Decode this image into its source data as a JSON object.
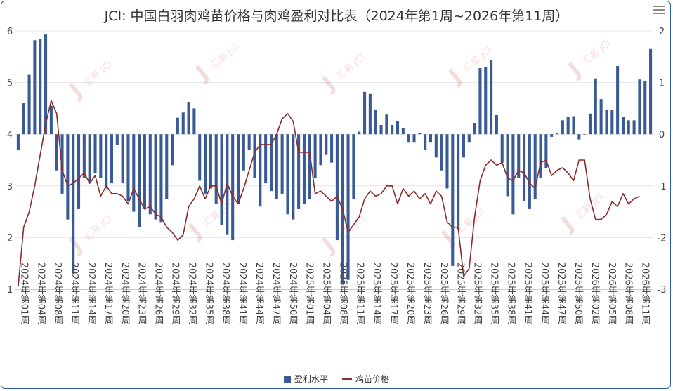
{
  "title": "JCI: 中国白羽肉鸡苗价格与肉鸡盈利对比表（2024年第1周~2026年第11周）",
  "watermark": "汇易 JCI",
  "colors": {
    "bar": "#3a5a96",
    "line": "#8b2b2b",
    "frame": "#2a5ea8",
    "grid": "#e6e6e6"
  },
  "chart_data": {
    "type": "bar+line",
    "title": "JCI: 中国白羽肉鸡苗价格与肉鸡盈利对比表（2024年第1周~2026年第11周）",
    "x_tick_labels": [
      "2024年第01周",
      "2024年第04周",
      "2024年第08周",
      "2024年第11周",
      "2024年第14周",
      "2024年第17周",
      "2024年第20周",
      "2024年第23周",
      "2024年第26周",
      "2024年第29周",
      "2024年第32周",
      "2024年第35周",
      "2024年第38周",
      "2024年第41周",
      "2024年第44周",
      "2024年第47周",
      "2024年第50周",
      "2025年第01周",
      "2025年第04周",
      "2025年第08周",
      "2025年第11周",
      "2025年第14周",
      "2025年第17周",
      "2025年第20周",
      "2025年第23周",
      "2025年第26周",
      "2025年第29周",
      "2025年第32周",
      "2025年第35周",
      "2025年第38周",
      "2025年第41周",
      "2025年第44周",
      "2025年第47周",
      "2025年第50周",
      "2026年第02周",
      "2026年第05周",
      "2026年第08周",
      "2026年第11周"
    ],
    "y_left": {
      "min": 1,
      "max": 6,
      "ticks": [
        1,
        2,
        3,
        4,
        5,
        6
      ]
    },
    "y_right": {
      "min": -3,
      "max": 2,
      "ticks": [
        -3,
        -2,
        -1,
        0,
        1,
        2
      ]
    },
    "series": [
      {
        "name": "盈利水平",
        "type": "bar",
        "axis": "right",
        "values": [
          -0.3,
          0.6,
          1.15,
          1.82,
          1.85,
          1.93,
          0.55,
          -0.7,
          -1.15,
          -1.65,
          -2.7,
          -1.45,
          -0.85,
          -0.95,
          -0.75,
          -0.85,
          -1.05,
          -0.95,
          -0.2,
          -0.95,
          -1.3,
          -1.5,
          -1.8,
          -1.45,
          -1.55,
          -1.65,
          -1.7,
          -1.25,
          -0.6,
          0.32,
          0.42,
          0.62,
          0.5,
          -0.9,
          -1.15,
          -1.05,
          -1.35,
          -1.75,
          -1.95,
          -2.05,
          -1.35,
          -0.7,
          -0.3,
          -0.85,
          -1.4,
          -0.95,
          -1.1,
          -1.25,
          -1.15,
          -1.55,
          -1.65,
          -1.45,
          -1.35,
          -1.25,
          -0.85,
          -0.6,
          -0.4,
          -0.55,
          -2.05,
          -2.9,
          -2.82,
          -1.25,
          0.05,
          0.82,
          0.78,
          0.48,
          0.18,
          0.38,
          0.18,
          0.25,
          0.12,
          -0.15,
          -0.15,
          0.02,
          -0.3,
          -0.15,
          -0.45,
          -0.7,
          -1.05,
          -2.55,
          -1.85,
          -0.45,
          -0.15,
          0.22,
          1.28,
          1.3,
          1.43,
          0.37,
          -0.55,
          -1.2,
          -1.55,
          -0.85,
          -1.3,
          -1.45,
          -1.25,
          -0.85,
          -0.65,
          -0.05,
          0.02,
          0.27,
          0.33,
          0.35,
          -0.1,
          0.0,
          0.4,
          1.08,
          0.68,
          0.48,
          0.47,
          1.32,
          0.34,
          0.27,
          0.27,
          1.06,
          1.03,
          1.65
        ]
      },
      {
        "name": "鸡苗价格",
        "type": "line",
        "axis": "left",
        "values": [
          1.05,
          2.2,
          2.5,
          3.0,
          3.6,
          4.2,
          4.65,
          4.4,
          3.3,
          3.0,
          3.05,
          3.15,
          3.25,
          3.05,
          3.2,
          2.8,
          3.0,
          2.85,
          2.85,
          2.8,
          2.65,
          2.95,
          2.75,
          2.55,
          2.6,
          2.45,
          2.4,
          2.2,
          2.1,
          1.95,
          2.05,
          2.6,
          2.75,
          3.0,
          2.75,
          3.0,
          3.0,
          2.65,
          3.05,
          2.8,
          2.65,
          2.95,
          3.3,
          3.65,
          3.8,
          3.8,
          3.8,
          4.0,
          4.3,
          4.4,
          4.25,
          3.65,
          3.65,
          3.65,
          2.85,
          2.9,
          2.8,
          2.7,
          2.8,
          2.55,
          2.1,
          2.25,
          2.4,
          2.75,
          2.9,
          2.8,
          2.85,
          3.0,
          3.0,
          2.65,
          2.95,
          2.8,
          2.9,
          2.75,
          2.85,
          2.65,
          2.9,
          2.8,
          2.3,
          2.2,
          2.2,
          1.25,
          1.4,
          2.4,
          3.1,
          3.4,
          3.5,
          3.4,
          3.45,
          3.15,
          3.1,
          3.3,
          3.25,
          3.05,
          2.95,
          3.45,
          3.5,
          3.2,
          3.3,
          3.35,
          3.25,
          3.1,
          3.5,
          3.5,
          2.75,
          2.35,
          2.35,
          2.45,
          2.7,
          2.6,
          2.85,
          2.65,
          2.75,
          2.8
        ]
      }
    ]
  },
  "legend": {
    "bar_label": "盈利水平",
    "line_label": "鸡苗价格"
  }
}
